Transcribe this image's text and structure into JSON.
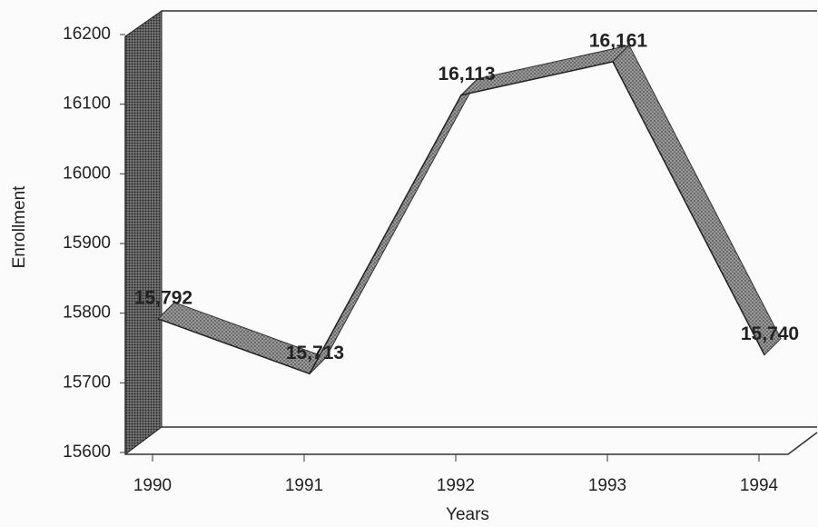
{
  "chart_data": {
    "type": "line",
    "x_label": "Years",
    "y_label": "Enrollment",
    "categories": [
      "1990",
      "1991",
      "1992",
      "1993",
      "1994"
    ],
    "values": [
      15792,
      15713,
      16113,
      16161,
      15740
    ],
    "value_labels": [
      "15,792",
      "15,713",
      "16,113",
      "16,161",
      "15,740"
    ],
    "color": "#b4b4b4",
    "ylim": [
      15600,
      16200
    ],
    "yticks": [
      15600,
      15700,
      15800,
      15900,
      16000,
      16100,
      16200
    ]
  }
}
